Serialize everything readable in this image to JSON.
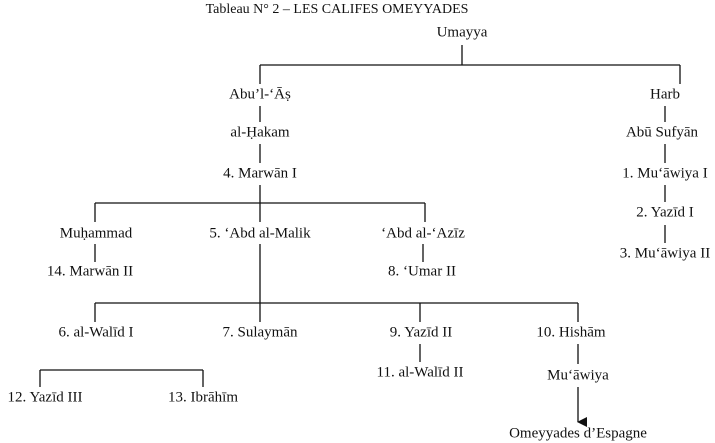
{
  "title": "Tableau N° 2 – LES CALIFES OMEYYADES",
  "nodes": [
    {
      "label": "Umayya"
    },
    {
      "label": "Abu’l-‘Āṣ"
    },
    {
      "label": "Harb"
    },
    {
      "label": "al-Ḥakam"
    },
    {
      "label": "Abū Sufyān"
    },
    {
      "label": "4. Marwān I"
    },
    {
      "label": "1. Mu‘āwiya I"
    },
    {
      "label": "Muḥammad"
    },
    {
      "label": "5. ‘Abd al-Malik"
    },
    {
      "label": "‘Abd al-‘Azīz"
    },
    {
      "label": "2. Yazīd I"
    },
    {
      "label": "3. Mu‘āwiya II"
    },
    {
      "label": "14. Marwān II"
    },
    {
      "label": "8. ‘Umar II"
    },
    {
      "label": "6. al-Walīd I"
    },
    {
      "label": "7. Sulaymān"
    },
    {
      "label": "9. Yazīd II"
    },
    {
      "label": "10. Hishām"
    },
    {
      "label": "11. al-Walīd II"
    },
    {
      "label": "Mu‘āwiya"
    },
    {
      "label": "12. Yazīd III"
    },
    {
      "label": "13. Ibrāhīm"
    },
    {
      "label": "Omeyyades d’Espagne"
    }
  ]
}
